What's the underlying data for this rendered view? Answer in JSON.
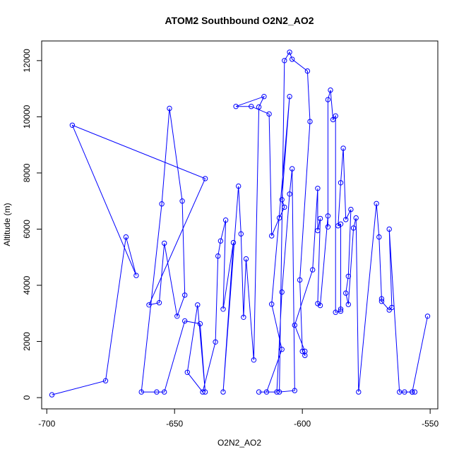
{
  "chart_data": {
    "type": "scatter",
    "title": "ATOM2 Southbound O2N2_AO2",
    "xlabel": "O2N2_AO2",
    "ylabel": "Altitude (m)",
    "xlim": [
      -702,
      -547
    ],
    "ylim": [
      -400,
      12700
    ],
    "xticks": [
      -700,
      -650,
      -600,
      -550
    ],
    "yticks": [
      0,
      2000,
      4000,
      6000,
      8000,
      10000,
      12000
    ],
    "grid": false,
    "series": [
      {
        "color": "#0000ff",
        "style": "both",
        "points": [
          [
            -698,
            100
          ],
          [
            -677,
            600
          ],
          [
            -669,
            5720
          ],
          [
            -665,
            4350
          ],
          [
            -690,
            9700
          ],
          [
            -638,
            7800
          ],
          [
            -660,
            3300
          ],
          [
            -656,
            3380
          ],
          [
            -654,
            5500
          ],
          [
            -649,
            2900
          ],
          [
            -646,
            3650
          ],
          [
            -647,
            7000
          ],
          [
            -652,
            10300
          ],
          [
            -655,
            6900
          ],
          [
            -663,
            200
          ],
          [
            -657,
            200
          ],
          [
            -654,
            200
          ],
          [
            -646,
            2730
          ],
          [
            -640,
            2630
          ],
          [
            -638,
            200
          ],
          [
            -641,
            3300
          ],
          [
            -645,
            900
          ],
          [
            -639,
            200
          ],
          [
            -634,
            1980
          ],
          [
            -633,
            5040
          ],
          [
            -632,
            5580
          ],
          [
            -630,
            6320
          ],
          [
            -631,
            3150
          ],
          [
            -627,
            5520
          ],
          [
            -631,
            200
          ],
          [
            -625,
            7530
          ],
          [
            -624,
            5830
          ],
          [
            -623,
            2860
          ],
          [
            -622,
            4940
          ],
          [
            -619,
            1340
          ],
          [
            -617,
            10350
          ],
          [
            -615,
            10720
          ],
          [
            -626,
            10370
          ],
          [
            -620,
            10370
          ],
          [
            -613,
            10100
          ],
          [
            -612,
            5760
          ],
          [
            -609,
            6400
          ],
          [
            -607,
            6780
          ],
          [
            -608,
            7050
          ],
          [
            -605,
            10720
          ],
          [
            -612,
            3330
          ],
          [
            -608,
            1720
          ],
          [
            -614,
            200
          ],
          [
            -617,
            200
          ],
          [
            -610,
            200
          ],
          [
            -608,
            3760
          ],
          [
            -605,
            7250
          ],
          [
            -604,
            8150
          ],
          [
            -603,
            250
          ],
          [
            -609,
            200
          ],
          [
            -607,
            12000
          ],
          [
            -605,
            12300
          ],
          [
            -604,
            12050
          ],
          [
            -598,
            11630
          ],
          [
            -597,
            9830
          ],
          [
            -601,
            4190
          ],
          [
            -600,
            1650
          ],
          [
            -599,
            1500
          ],
          [
            -599,
            1650
          ],
          [
            -603,
            2580
          ],
          [
            -596,
            4550
          ],
          [
            -594,
            7450
          ],
          [
            -594,
            5950
          ],
          [
            -593,
            6380
          ],
          [
            -594,
            3350
          ],
          [
            -593,
            3280
          ],
          [
            -590,
            6470
          ],
          [
            -590,
            6080
          ],
          [
            -590,
            10610
          ],
          [
            -589,
            10950
          ],
          [
            -588,
            9900
          ],
          [
            -587,
            10030
          ],
          [
            -587,
            3040
          ],
          [
            -585,
            3080
          ],
          [
            -585,
            3150
          ],
          [
            -585,
            6180
          ],
          [
            -586,
            6120
          ],
          [
            -585,
            7650
          ],
          [
            -584,
            8880
          ],
          [
            -583,
            6340
          ],
          [
            -581,
            6700
          ],
          [
            -582,
            4320
          ],
          [
            -583,
            3720
          ],
          [
            -582,
            3320
          ],
          [
            -580,
            6040
          ],
          [
            -579,
            6400
          ],
          [
            -578,
            200
          ],
          [
            -571,
            6910
          ],
          [
            -570,
            5720
          ],
          [
            -569,
            3520
          ],
          [
            -569,
            3430
          ],
          [
            -566,
            3120
          ],
          [
            -565,
            3210
          ],
          [
            -566,
            6000
          ],
          [
            -562,
            200
          ],
          [
            -560,
            200
          ],
          [
            -557,
            200
          ],
          [
            -551,
            2900
          ],
          [
            -557,
            200
          ],
          [
            -556,
            200
          ]
        ]
      }
    ]
  }
}
